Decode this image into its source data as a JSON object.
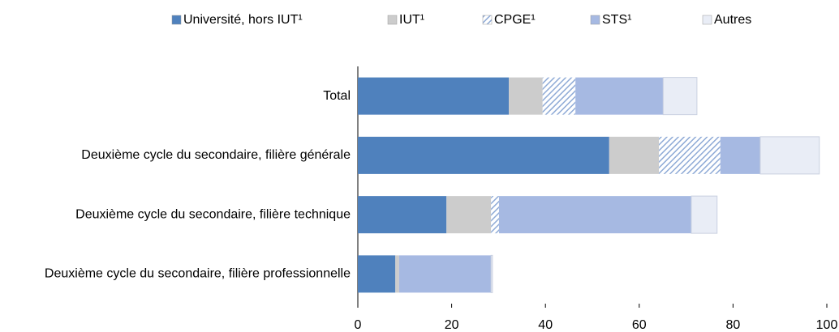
{
  "chart_data": {
    "type": "bar",
    "orientation": "horizontal",
    "stacked": true,
    "categories": [
      "Total",
      "Deuxième cycle du secondaire, filière générale",
      "Deuxième cycle du secondaire, filière technique",
      "Deuxième cycle du secondaire, filière professionnelle"
    ],
    "series": [
      {
        "name": "Université, hors IUT¹",
        "color": "#4f81bd",
        "values": [
          32.2,
          53.6,
          18.9,
          8.0
        ]
      },
      {
        "name": "IUT¹",
        "color": "#cccccc",
        "values": [
          7.2,
          10.6,
          9.5,
          0.8
        ]
      },
      {
        "name": "CPGE¹",
        "color": "#8eaad6",
        "hatch": true,
        "values": [
          7.0,
          13.1,
          1.7,
          0
        ]
      },
      {
        "name": "STS¹",
        "color": "#a6b9e2",
        "values": [
          18.7,
          8.5,
          41.0,
          19.6
        ]
      },
      {
        "name": "Autres",
        "color": "#e9edf6",
        "values": [
          7.2,
          12.6,
          5.5,
          0.3
        ]
      }
    ],
    "xlim": [
      0,
      100
    ],
    "xticks": [
      0,
      20,
      40,
      60,
      80,
      100
    ],
    "legend": "top"
  }
}
